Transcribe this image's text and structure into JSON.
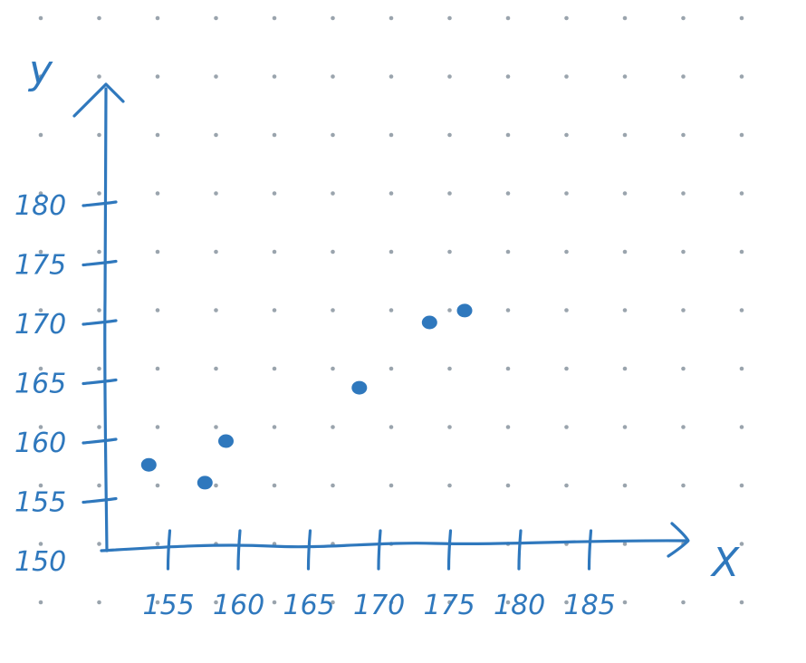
{
  "chart_data": {
    "type": "scatter",
    "xlabel": "X",
    "ylabel": "y",
    "x_ticks": [
      "155",
      "160",
      "165",
      "170",
      "175",
      "180",
      "185"
    ],
    "y_ticks": [
      "150",
      "155",
      "160",
      "165",
      "170",
      "175",
      "180"
    ],
    "xlim": [
      150,
      190
    ],
    "ylim": [
      150,
      185
    ],
    "grid": "dotted",
    "points": [
      {
        "x": 153.5,
        "y": 158
      },
      {
        "x": 157.5,
        "y": 156.5
      },
      {
        "x": 159,
        "y": 160
      },
      {
        "x": 168.5,
        "y": 164.5
      },
      {
        "x": 173.5,
        "y": 170
      },
      {
        "x": 176,
        "y": 171
      }
    ]
  },
  "colors": {
    "ink": "#2f78bd",
    "grid_dot": "#9aa4ad",
    "background": "#ffffff"
  }
}
